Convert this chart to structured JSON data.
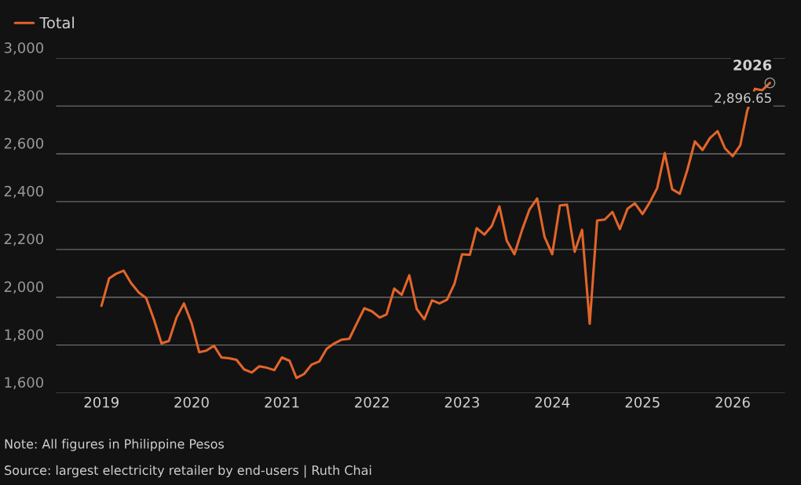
{
  "chart_data": {
    "type": "line",
    "x": [
      "2019-01",
      "2019-02",
      "2019-03",
      "2019-04",
      "2019-05",
      "2019-06",
      "2019-07",
      "2019-08",
      "2019-09",
      "2019-10",
      "2019-11",
      "2019-12",
      "2020-01",
      "2020-02",
      "2020-03",
      "2020-04",
      "2020-05",
      "2020-06",
      "2020-07",
      "2020-08",
      "2020-09",
      "2020-10",
      "2020-11",
      "2020-12",
      "2021-01",
      "2021-02",
      "2021-03",
      "2021-04",
      "2021-05",
      "2021-06",
      "2021-07",
      "2021-08",
      "2021-09",
      "2021-10",
      "2021-11",
      "2021-12",
      "2022-01",
      "2022-02",
      "2022-03",
      "2022-04",
      "2022-05",
      "2022-06",
      "2022-07",
      "2022-08",
      "2022-09",
      "2022-10",
      "2022-11",
      "2022-12",
      "2023-01",
      "2023-02",
      "2023-03",
      "2023-04",
      "2023-05",
      "2023-06",
      "2023-07",
      "2023-08",
      "2023-09",
      "2023-10",
      "2023-11",
      "2023-12",
      "2024-01",
      "2024-02",
      "2024-03",
      "2024-04",
      "2024-05",
      "2024-06",
      "2024-07",
      "2024-08",
      "2024-09",
      "2024-10",
      "2024-11",
      "2024-12",
      "2025-01",
      "2025-02",
      "2025-03",
      "2025-04",
      "2025-05",
      "2025-06",
      "2025-07",
      "2025-08",
      "2025-09",
      "2025-10",
      "2025-11",
      "2025-12",
      "2026-01",
      "2026-02",
      "2026-03",
      "2026-04",
      "2026-05",
      "2026-06"
    ],
    "series": [
      {
        "name": "Total",
        "color": "#e2652a",
        "values": [
          1964,
          2079,
          2098,
          2111,
          2059,
          2020,
          1997,
          1908,
          1807,
          1817,
          1915,
          1974,
          1892,
          1770,
          1777,
          1797,
          1748,
          1745,
          1738,
          1698,
          1685,
          1711,
          1705,
          1695,
          1748,
          1734,
          1662,
          1679,
          1718,
          1731,
          1784,
          1807,
          1823,
          1826,
          1892,
          1954,
          1941,
          1915,
          1928,
          2036,
          2010,
          2092,
          1951,
          1908,
          1987,
          1974,
          1990,
          2056,
          2180,
          2177,
          2289,
          2262,
          2298,
          2380,
          2236,
          2180,
          2282,
          2367,
          2413,
          2252,
          2180,
          2384,
          2387,
          2190,
          2282,
          1889,
          2321,
          2325,
          2357,
          2285,
          2370,
          2393,
          2348,
          2400,
          2456,
          2603,
          2452,
          2433,
          2531,
          2652,
          2616,
          2666,
          2695,
          2623,
          2590,
          2636,
          2780,
          2872,
          2866,
          2896.65
        ],
        "value_labels": [
          null,
          null,
          null,
          null,
          null,
          null,
          null,
          null,
          null,
          null,
          null,
          null,
          null,
          null,
          null,
          null,
          null,
          null,
          null,
          null,
          null,
          null,
          null,
          null,
          null,
          null,
          null,
          null,
          null,
          null,
          null,
          null,
          null,
          null,
          null,
          null,
          null,
          null,
          null,
          null,
          null,
          null,
          null,
          null,
          null,
          null,
          null,
          null,
          null,
          null,
          null,
          null,
          null,
          null,
          null,
          null,
          null,
          null,
          null,
          null,
          null,
          null,
          null,
          null,
          null,
          null,
          null,
          null,
          null,
          null,
          null,
          null,
          null,
          null,
          null,
          null,
          null,
          null,
          null,
          null,
          null,
          null,
          null,
          null,
          null,
          null,
          null,
          null,
          null,
          "2,896.65"
        ]
      }
    ],
    "xlim": [
      "2018-07",
      "2026-08"
    ],
    "xticks": [
      {
        "value": "2019",
        "label": "2019"
      },
      {
        "value": "2020",
        "label": "2020"
      },
      {
        "value": "2021",
        "label": "2021"
      },
      {
        "value": "2022",
        "label": "2022"
      },
      {
        "value": "2023",
        "label": "2023"
      },
      {
        "value": "2024",
        "label": "2024"
      },
      {
        "value": "2025",
        "label": "2025"
      },
      {
        "value": "2026",
        "label": "2026"
      }
    ],
    "ylim": [
      1600,
      3000
    ],
    "yticks": [
      {
        "value": 1600,
        "label": "1,600"
      },
      {
        "value": 1800,
        "label": "1,800"
      },
      {
        "value": 2000,
        "label": "2,000"
      },
      {
        "value": 2200,
        "label": "2,200"
      },
      {
        "value": 2400,
        "label": "2,400"
      },
      {
        "value": 2600,
        "label": "2,600"
      },
      {
        "value": 2800,
        "label": "2,800"
      },
      {
        "value": 3000,
        "label": "3,000"
      }
    ],
    "grid": "y",
    "legend": "top left",
    "marker": "none",
    "line_style": "solid",
    "annotations": [
      {
        "text": "2026",
        "x": "2026-06",
        "y": 2896.65
      },
      "Note: All figures in Philippine Pesos",
      "Source: largest electricity retailer by end-users | Ruth Chai"
    ]
  }
}
